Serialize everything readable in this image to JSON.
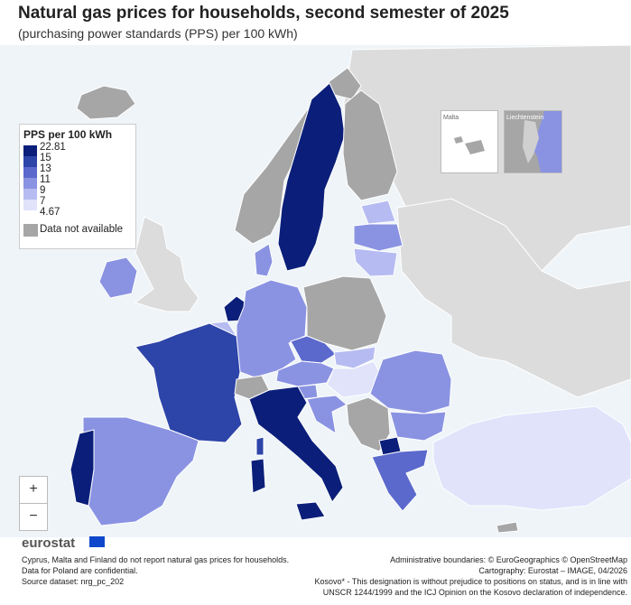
{
  "header": {
    "title": "Natural gas prices for households, second semester of 2025",
    "subtitle": "(purchasing power standards (PPS) per 100 kWh)"
  },
  "legend": {
    "title": "PPS per 100 kWh",
    "breaks": [
      "22.81",
      "15",
      "13",
      "11",
      "9",
      "7",
      "4.67"
    ],
    "na_label": "Data not available",
    "colors": [
      "#0b1f7a",
      "#2d44a8",
      "#5b69cc",
      "#8a93e2",
      "#b6bcf2",
      "#e0e3fa"
    ],
    "na_color": "#a6a6a6"
  },
  "colors": {
    "sea": "#eef4f8",
    "non_eu": "#dcdcdc",
    "na": "#a6a6a6"
  },
  "insets": {
    "malta": "Malta",
    "liechtenstein": "Liechtenstein"
  },
  "zoom": {
    "in": "+",
    "out": "−"
  },
  "logo": {
    "text": "eurostat"
  },
  "footnotes": {
    "left": [
      "Cyprus, Malta and Finland do not report natural gas prices for households.",
      "Data for Poland are confidential.",
      "Source dataset: nrg_pc_202"
    ],
    "right": [
      "Administrative boundaries: © EuroGeographics © OpenStreetMap",
      "Cartography: Eurostat – IMAGE, 04/2026",
      "Kosovo* - This designation is without prejudice to positions on status, and is in line with",
      "UNSCR 1244/1999 and the ICJ Opinion on the Kosovo declaration of independence."
    ]
  }
}
